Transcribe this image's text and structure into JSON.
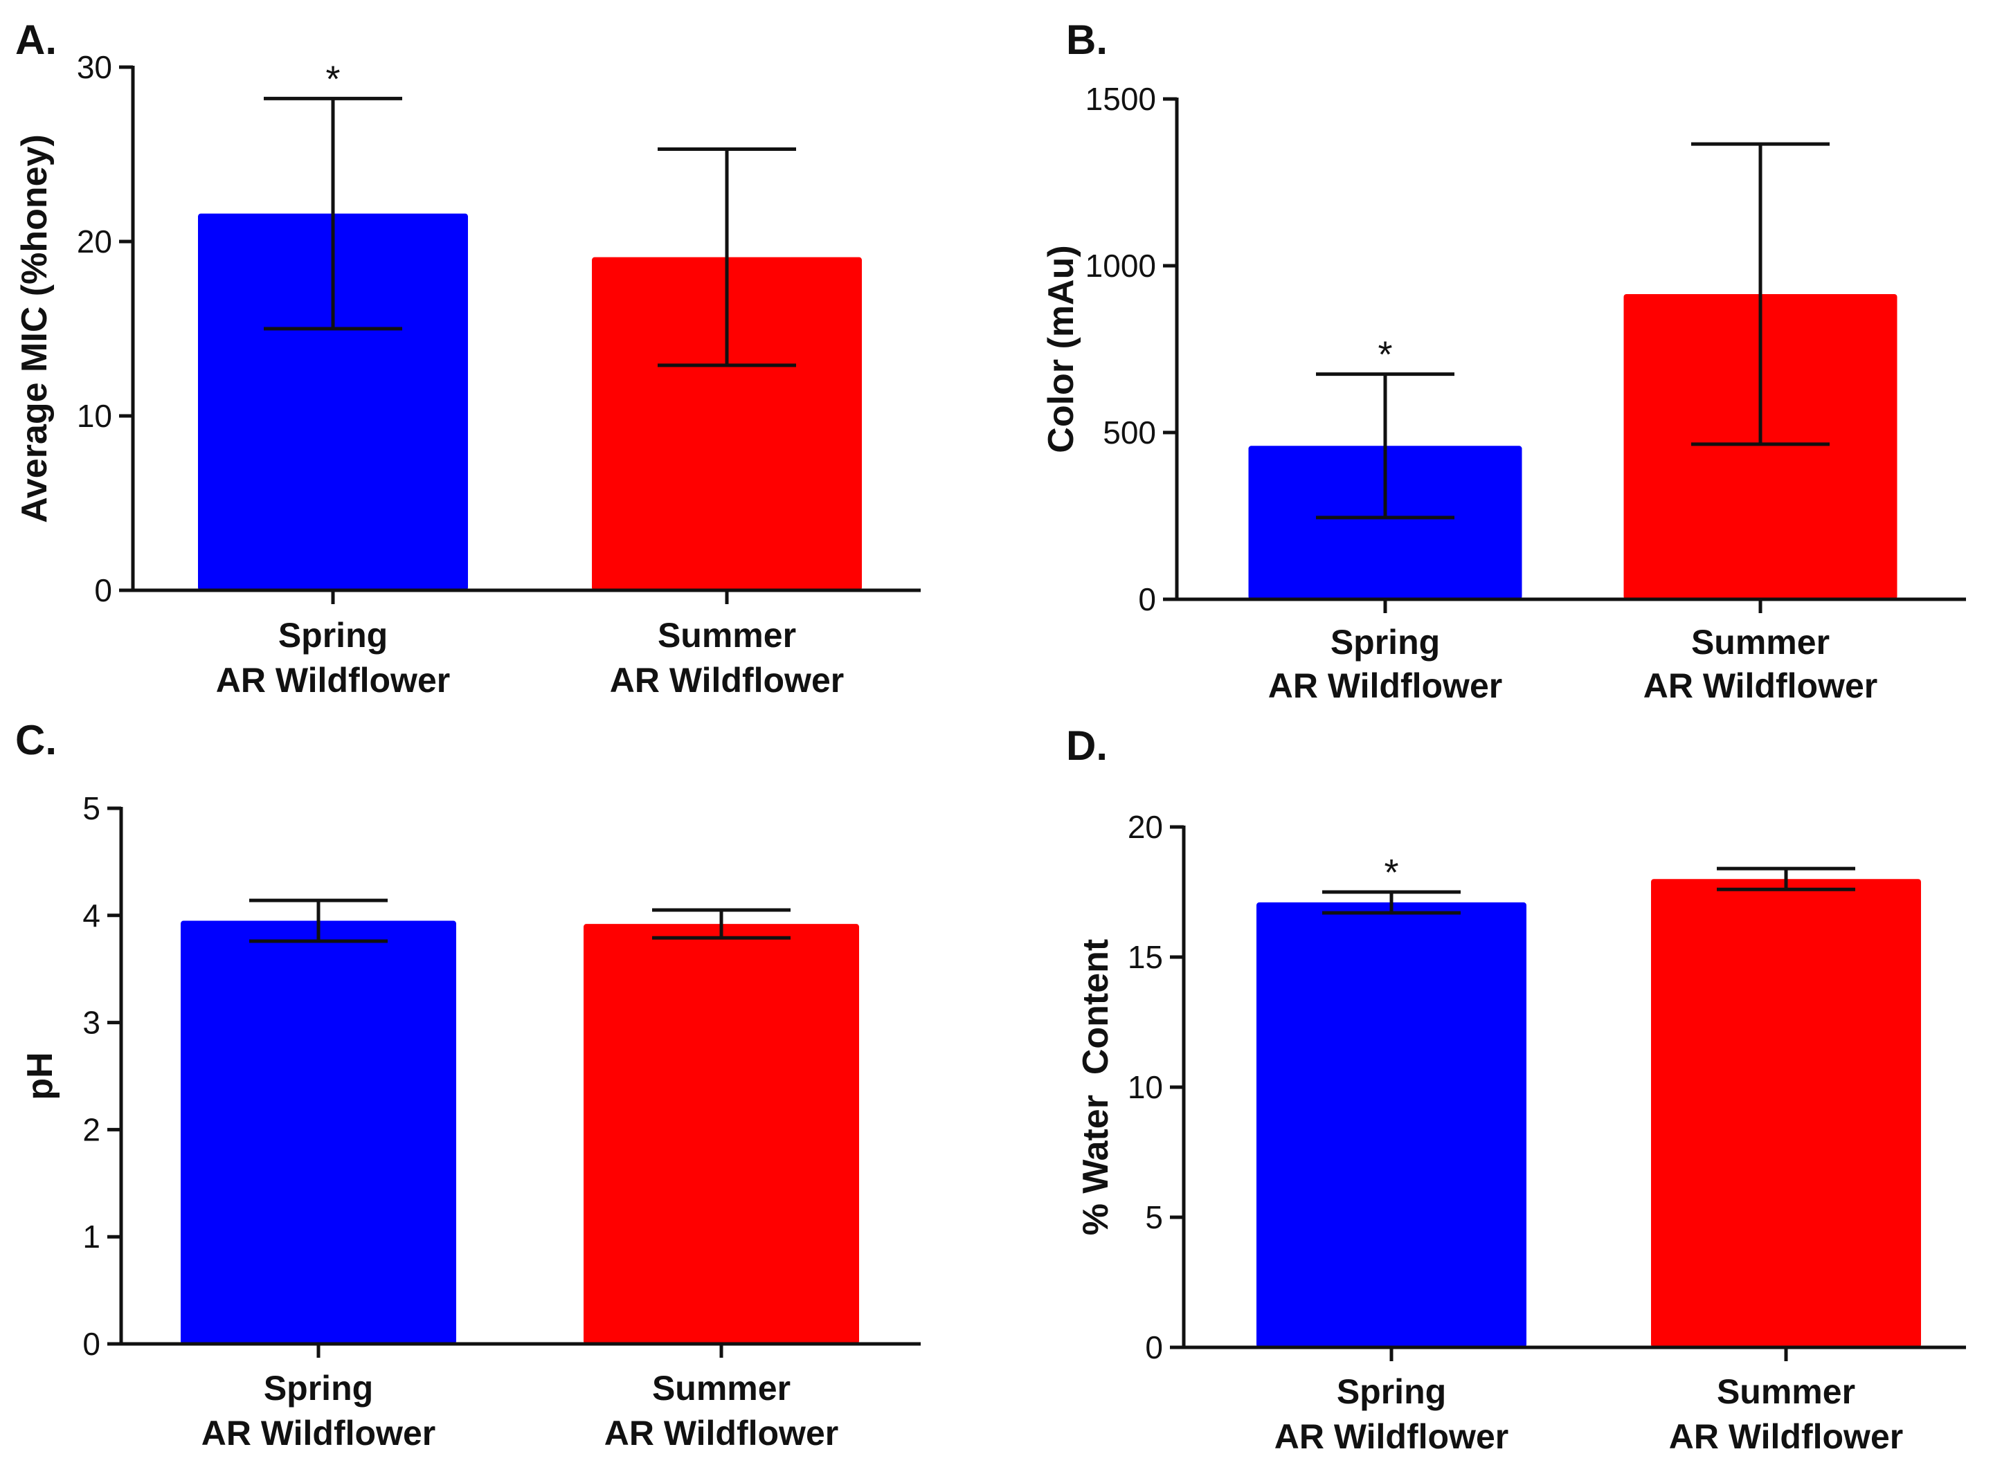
{
  "chart_data": [
    {
      "type": "bar",
      "panel_label": "A.",
      "title": "",
      "xlabel": "",
      "ylabel": "Average MIC (%honey)",
      "ylim": [
        0,
        30
      ],
      "yticks": [
        0,
        10,
        20,
        30
      ],
      "categories": [
        [
          "Spring",
          "AR Wildflower"
        ],
        [
          "Summer",
          "AR Wildflower"
        ]
      ],
      "values": [
        21.6,
        19.1
      ],
      "errors": [
        6.6,
        6.2
      ],
      "colors": [
        "#0000ff",
        "#ff0000"
      ],
      "significance": [
        "*",
        ""
      ]
    },
    {
      "type": "bar",
      "panel_label": "B.",
      "title": "",
      "xlabel": "",
      "ylabel": "Color (mAu)",
      "ylim": [
        0,
        1500
      ],
      "yticks": [
        0,
        500,
        1000,
        1500
      ],
      "categories": [
        [
          "Spring",
          "AR Wildflower"
        ],
        [
          "Summer",
          "AR Wildflower"
        ]
      ],
      "values": [
        460,
        915
      ],
      "errors": [
        215,
        450
      ],
      "colors": [
        "#0000ff",
        "#ff0000"
      ],
      "significance": [
        "*",
        ""
      ]
    },
    {
      "type": "bar",
      "panel_label": "C.",
      "title": "",
      "xlabel": "",
      "ylabel": "pH",
      "ylim": [
        0,
        5
      ],
      "yticks": [
        0,
        1,
        2,
        3,
        4,
        5
      ],
      "categories": [
        [
          "Spring",
          "AR Wildflower"
        ],
        [
          "Summer",
          "AR Wildflower"
        ]
      ],
      "values": [
        3.95,
        3.92
      ],
      "errors": [
        0.19,
        0.13
      ],
      "colors": [
        "#0000ff",
        "#ff0000"
      ],
      "significance": [
        "",
        ""
      ]
    },
    {
      "type": "bar",
      "panel_label": "D.",
      "title": "",
      "xlabel": "",
      "ylabel": "% Water  Content",
      "ylim": [
        0,
        20
      ],
      "yticks": [
        0,
        5,
        10,
        15,
        20
      ],
      "categories": [
        [
          "Spring",
          "AR Wildflower"
        ],
        [
          "Summer",
          "AR Wildflower"
        ]
      ],
      "values": [
        17.1,
        18.0
      ],
      "errors": [
        0.4,
        0.4
      ],
      "colors": [
        "#0000ff",
        "#ff0000"
      ],
      "significance": [
        "*",
        ""
      ]
    }
  ]
}
